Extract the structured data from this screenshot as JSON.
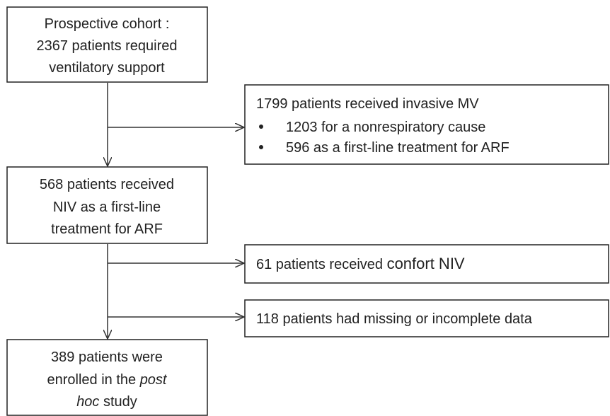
{
  "nodes": [
    {
      "lines": [
        "Prospective cohort :",
        "2367 patients required",
        "ventilatory support"
      ]
    },
    {
      "lines": [
        "1799 patients received invasive MV",
        "1203 for a nonrespiratory cause",
        "596 as a first-line treatment for ARF"
      ]
    },
    {
      "lines": [
        "568 patients received",
        "NIV as a first-line",
        "treatment for ARF"
      ]
    },
    {
      "lines": [
        [
          "61 patients received ",
          "confort NIV"
        ]
      ]
    },
    {
      "lines": [
        "118 patients had missing or incomplete data"
      ]
    },
    {
      "lines": [
        "389 patients were",
        [
          "enrolled in the ",
          "post"
        ],
        [
          "hoc",
          " study"
        ]
      ]
    }
  ]
}
